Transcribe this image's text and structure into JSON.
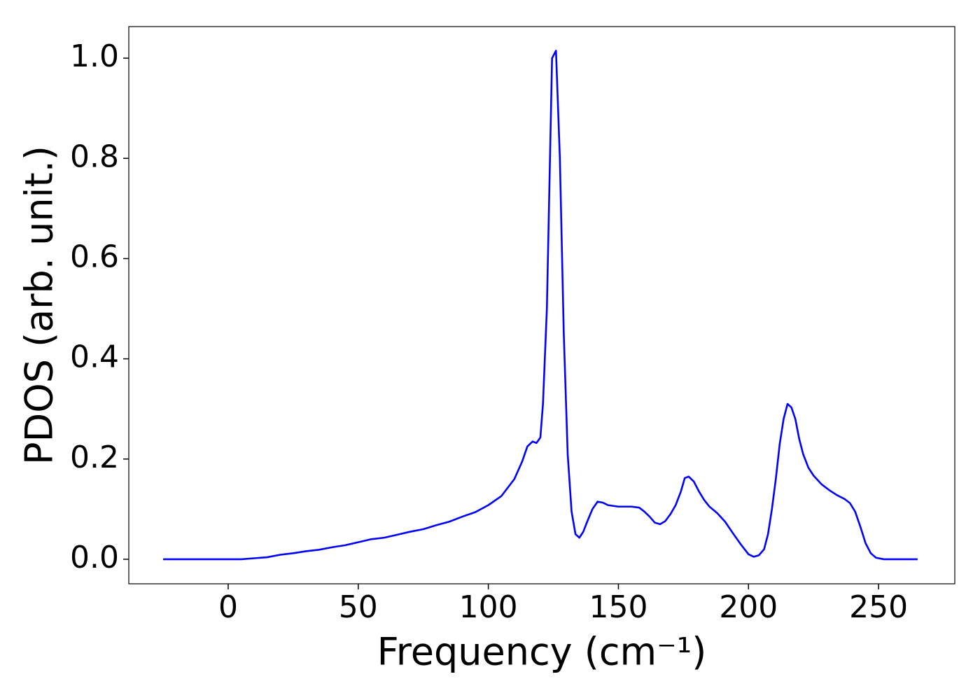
{
  "chart_data": {
    "type": "line",
    "xlabel": "Frequency (cm⁻¹)",
    "ylabel": "PDOS (arb. unit.)",
    "xlim": [
      -38.2,
      279.3
    ],
    "ylim": [
      -0.049,
      1.063
    ],
    "xticks": [
      0,
      50,
      100,
      150,
      200,
      250
    ],
    "yticks": [
      {
        "value": 0,
        "label": "0.0"
      },
      {
        "value": 0.2,
        "label": "0.2"
      },
      {
        "value": 0.4,
        "label": "0.4"
      },
      {
        "value": 0.6,
        "label": "0.6"
      },
      {
        "value": 0.8,
        "label": "0.8"
      },
      {
        "value": 1.0,
        "label": "1.0"
      }
    ],
    "grid": false,
    "x": [
      -25,
      0,
      5,
      10,
      15,
      20,
      25,
      30,
      35,
      40,
      45,
      50,
      55,
      60,
      65,
      70,
      75,
      80,
      85,
      90,
      95,
      100,
      105,
      110,
      113,
      115,
      117,
      118.5,
      120,
      121,
      122.5,
      124.5,
      126,
      127.5,
      129,
      130.5,
      132,
      133.5,
      135,
      136.5,
      138,
      140,
      142,
      144,
      146,
      150,
      155,
      158,
      160,
      162,
      164,
      166,
      168,
      170,
      172,
      174,
      175.5,
      177,
      179,
      181,
      183,
      185,
      188,
      191,
      194,
      197,
      200,
      202,
      204,
      206,
      207.5,
      209,
      210.5,
      212,
      213.5,
      215,
      216.5,
      218,
      219.5,
      221,
      223,
      225,
      228,
      231,
      234,
      237,
      239,
      241,
      243,
      245,
      247,
      249,
      252,
      258,
      265
    ],
    "series": [
      {
        "color": "#0000ff",
        "values": [
          0,
          0,
          0,
          0.002,
          0.004,
          0.009,
          0.012,
          0.016,
          0.019,
          0.024,
          0.028,
          0.034,
          0.04,
          0.043,
          0.049,
          0.055,
          0.06,
          0.068,
          0.075,
          0.085,
          0.094,
          0.108,
          0.126,
          0.16,
          0.195,
          0.225,
          0.235,
          0.232,
          0.243,
          0.31,
          0.5,
          1.0,
          1.015,
          0.8,
          0.45,
          0.21,
          0.095,
          0.05,
          0.043,
          0.055,
          0.075,
          0.1,
          0.115,
          0.113,
          0.108,
          0.105,
          0.105,
          0.103,
          0.095,
          0.085,
          0.073,
          0.07,
          0.076,
          0.09,
          0.108,
          0.135,
          0.162,
          0.165,
          0.155,
          0.135,
          0.118,
          0.105,
          0.092,
          0.075,
          0.052,
          0.03,
          0.01,
          0.005,
          0.008,
          0.02,
          0.05,
          0.1,
          0.16,
          0.23,
          0.28,
          0.31,
          0.303,
          0.28,
          0.24,
          0.21,
          0.183,
          0.167,
          0.15,
          0.138,
          0.128,
          0.12,
          0.112,
          0.095,
          0.065,
          0.032,
          0.012,
          0.003,
          0,
          0,
          0
        ]
      }
    ]
  }
}
